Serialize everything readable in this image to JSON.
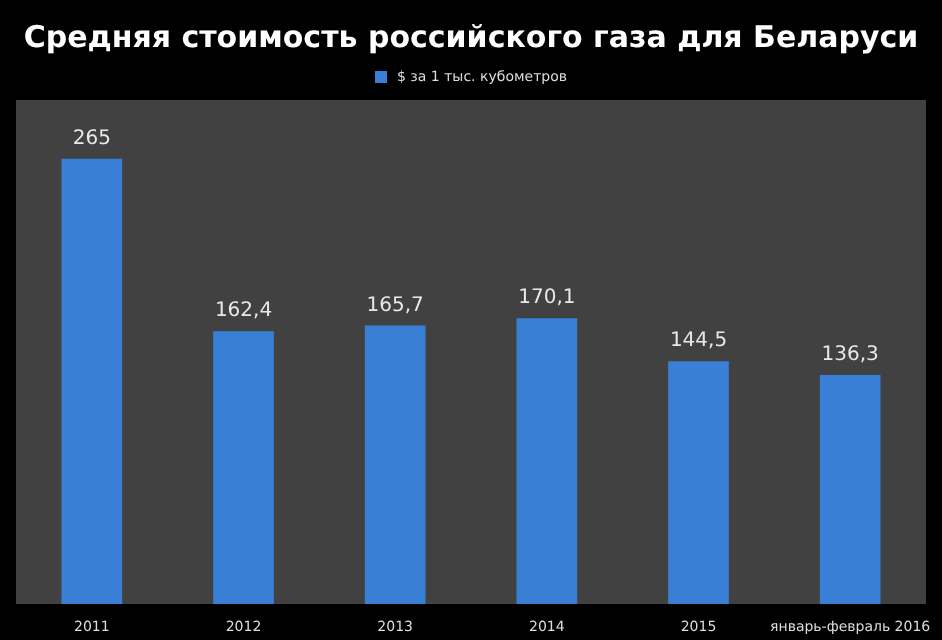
{
  "chart_data": {
    "type": "bar",
    "title": "Средняя стоимость российского газа для Беларуси",
    "categories": [
      "2011",
      "2012",
      "2013",
      "2014",
      "2015",
      "январь-февраль 2016"
    ],
    "series": [
      {
        "name": "$ за 1 тыс. кубометров",
        "color": "#3a7fd6",
        "values": [
          265,
          162.4,
          165.7,
          170.1,
          144.5,
          136.3
        ],
        "value_labels": [
          "265",
          "162,4",
          "165,7",
          "170,1",
          "144,5",
          "136,3"
        ]
      }
    ],
    "legend": "top",
    "grid": false
  }
}
